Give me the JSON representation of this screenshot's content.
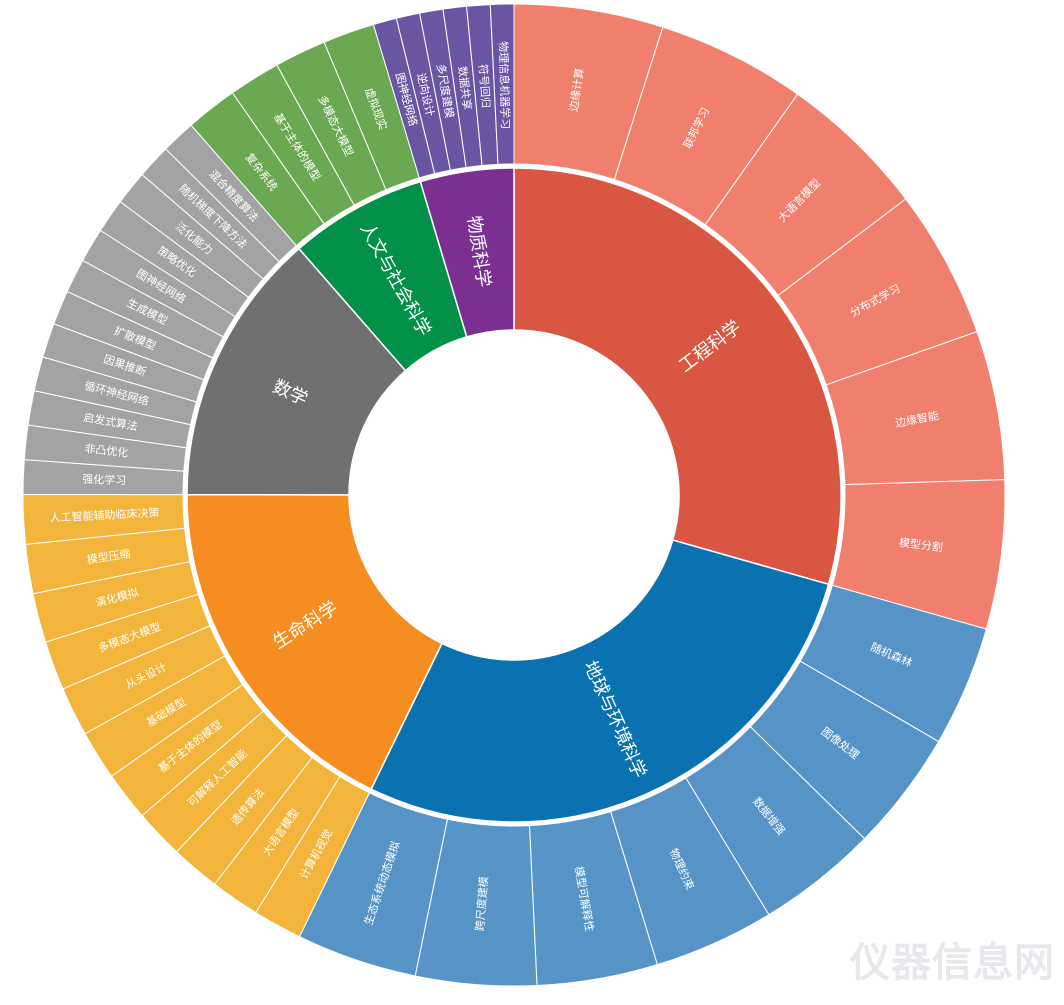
{
  "chart_data": {
    "type": "sunburst",
    "title": "",
    "value_unit": "estimated share of total (%)",
    "start": "12 o'clock, clockwise",
    "categories": [
      {
        "name": "工程科学",
        "color": "#d95742",
        "child_color": "#f07f6e",
        "children": [
          {
            "name": "边缘计算",
            "value": 4.9
          },
          {
            "name": "联邦学习",
            "value": 4.9
          },
          {
            "name": "大语言模型",
            "value": 4.9
          },
          {
            "name": "分布式学习",
            "value": 4.9
          },
          {
            "name": "边缘智能",
            "value": 4.9
          },
          {
            "name": "模型分割",
            "value": 4.9
          }
        ]
      },
      {
        "name": "地球与环境科学",
        "color": "#0a72b0",
        "child_color": "#5694c8",
        "children": [
          {
            "name": "随机森林",
            "value": 3.97
          },
          {
            "name": "图像处理",
            "value": 3.97
          },
          {
            "name": "数据增强",
            "value": 3.97
          },
          {
            "name": "物理约束",
            "value": 3.97
          },
          {
            "name": "模型可解释性",
            "value": 3.97
          },
          {
            "name": "跨尺度建模",
            "value": 3.97
          },
          {
            "name": "生态系统动态模拟",
            "value": 3.97
          }
        ]
      },
      {
        "name": "生命科学",
        "color": "#f58d20",
        "child_color": "#f2b43a",
        "children": [
          {
            "name": "计算机视觉",
            "value": 1.62
          },
          {
            "name": "大语言模型",
            "value": 1.62
          },
          {
            "name": "遗传算法",
            "value": 1.62
          },
          {
            "name": "可解释人工智能",
            "value": 1.62
          },
          {
            "name": "基于主体的模型",
            "value": 1.62
          },
          {
            "name": "基础模型",
            "value": 1.62
          },
          {
            "name": "从头设计",
            "value": 1.62
          },
          {
            "name": "多模态大模型",
            "value": 1.62
          },
          {
            "name": "演化模拟",
            "value": 1.62
          },
          {
            "name": "模型压缩",
            "value": 1.62
          },
          {
            "name": "人工智能辅助临床决策",
            "value": 1.62
          }
        ]
      },
      {
        "name": "数学",
        "color": "#707070",
        "child_color": "#a3a3a5",
        "children": [
          {
            "name": "强化学习",
            "value": 1.13
          },
          {
            "name": "非凸优化",
            "value": 1.13
          },
          {
            "name": "启发式算法",
            "value": 1.13
          },
          {
            "name": "循环神经网络",
            "value": 1.13
          },
          {
            "name": "因果推断",
            "value": 1.13
          },
          {
            "name": "扩散模型",
            "value": 1.13
          },
          {
            "name": "生成模型",
            "value": 1.13
          },
          {
            "name": "图神经网络",
            "value": 1.13
          },
          {
            "name": "策略优化",
            "value": 1.13
          },
          {
            "name": "泛化能力",
            "value": 1.13
          },
          {
            "name": "随机梯度下降方法",
            "value": 1.13
          },
          {
            "name": "混合精度算法",
            "value": 1.13
          }
        ]
      },
      {
        "name": "人文与社会科学",
        "color": "#039048",
        "child_color": "#6aa952",
        "children": [
          {
            "name": "复杂系统",
            "value": 1.7
          },
          {
            "name": "基于主体的模型",
            "value": 1.7
          },
          {
            "name": "多模态大模型",
            "value": 1.7
          },
          {
            "name": "虚拟现实",
            "value": 1.7
          }
        ]
      },
      {
        "name": "物质科学",
        "color": "#7b2f91",
        "child_color": "#6a55a3",
        "children": [
          {
            "name": "图神经网络",
            "value": 0.77
          },
          {
            "name": "逆向设计",
            "value": 0.77
          },
          {
            "name": "多尺度建模",
            "value": 0.77
          },
          {
            "name": "数据共享",
            "value": 0.77
          },
          {
            "name": "符号回归",
            "value": 0.77
          },
          {
            "name": "物理信息机器学习",
            "value": 0.77
          }
        ]
      }
    ]
  },
  "watermark": "仪器信息网"
}
